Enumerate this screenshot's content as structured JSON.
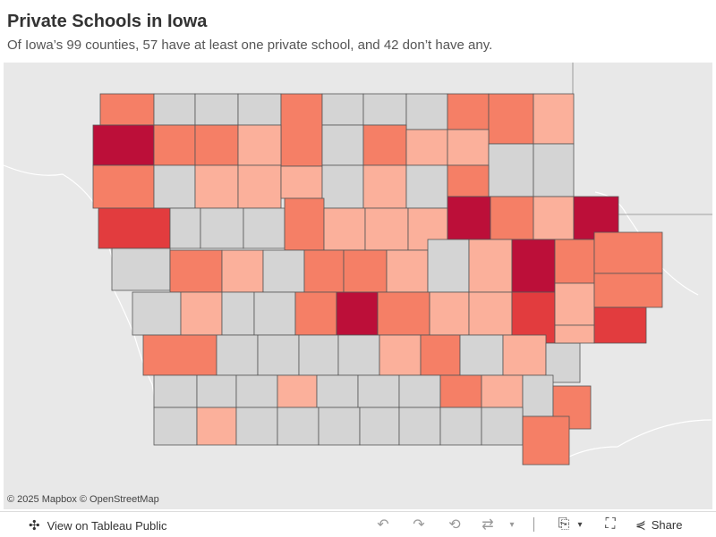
{
  "header": {
    "title": "Private Schools in Iowa",
    "subtitle": "Of Iowa’s 99 counties, 57 have at least one private school, and 42 don’t have any."
  },
  "map": {
    "attribution": "© 2025 Mapbox © OpenStreetMap",
    "colors": {
      "none": "#d4d4d4",
      "light": "#fbb09b",
      "medium": "#f57f66",
      "dark": "#e23c3e",
      "darkest": "#bc0f39",
      "land": "#e8e8e8",
      "border": "#555555"
    }
  },
  "toolbar": {
    "view_label": "View on Tableau Public",
    "share_label": "Share",
    "icons": [
      "undo-icon",
      "redo-icon",
      "revert-icon",
      "refresh-icon",
      "download-icon",
      "fullscreen-icon",
      "share-icon"
    ]
  }
}
